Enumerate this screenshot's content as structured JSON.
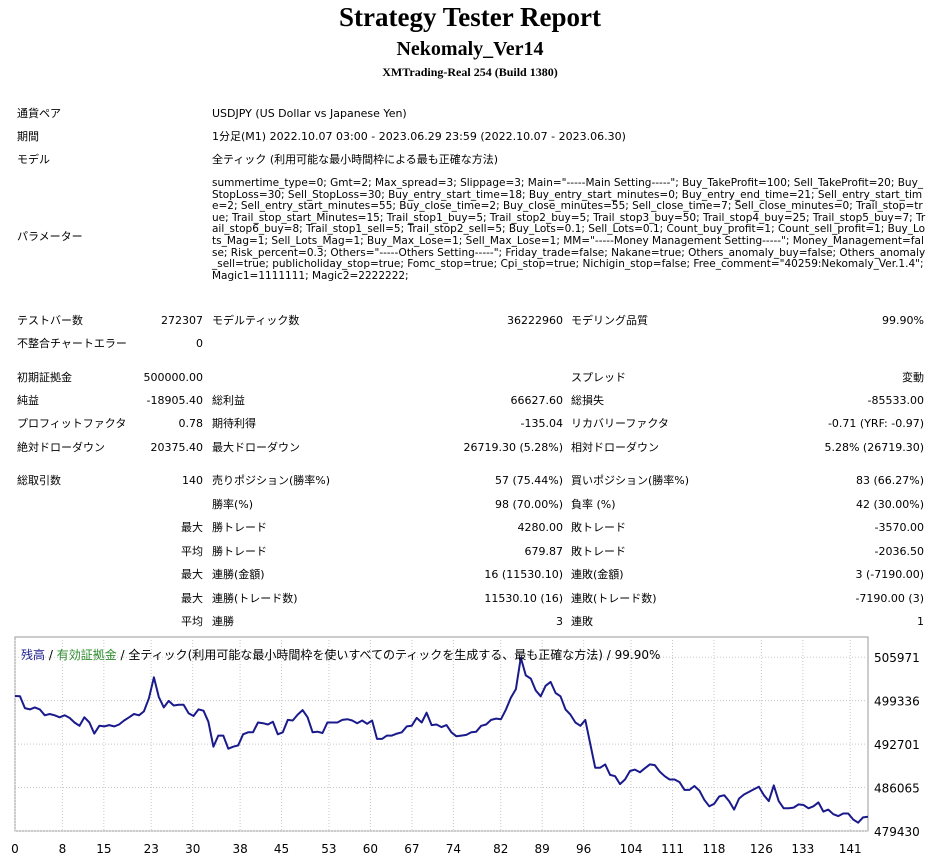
{
  "header": {
    "title": "Strategy Tester Report",
    "ea": "Nekomaly_Ver14",
    "server": "XMTrading-Real 254 (Build 1380)"
  },
  "info": {
    "pair_label": "通貨ペア",
    "pair": "USDJPY (US Dollar vs Japanese Yen)",
    "period_label": "期間",
    "period": "1分足(M1) 2022.10.07 03:00 - 2023.06.29 23:59 (2022.10.07 - 2023.06.30)",
    "model_label": "モデル",
    "model": "全ティック (利用可能な最小時間枠による最も正確な方法)",
    "params_label": "パラメーター",
    "params": "summertime_type=0; Gmt=2; Max_spread=3; Slippage=3; Main=\"-----Main Setting-----\"; Buy_TakeProfit=100; Sell_TakeProfit=20; Buy_StopLoss=30; Sell_StopLoss=30; Buy_entry_start_time=18; Buy_entry_start_minutes=0; Buy_entry_end_time=21; Sell_entry_start_time=2; Sell_entry_start_minutes=55; Buy_close_time=2; Buy_close_minutes=55; Sell_close_time=7; Sell_close_minutes=0; Trail_stop=true; Trail_stop_start_Minutes=15; Trail_stop1_buy=5; Trail_stop2_buy=5; Trail_stop3_buy=50; Trail_stop4_buy=25; Trail_stop5_buy=7; Trail_stop6_buy=8; Trail_stop1_sell=5; Trail_stop2_sell=5; Buy_Lots=0.1; Sell_Lots=0.1; Count_buy_profit=1; Count_sell_profit=1; Buy_Lots_Mag=1; Sell_Lots_Mag=1; Buy_Max_Lose=1; Sell_Max_Lose=1; MM=\"-----Money Management Setting-----\"; Money_Management=false; Risk_percent=0.3; Others=\"-----Others Setting-----\"; Friday_trade=false; Nakane=true; Others_anomaly_buy=false; Others_anomaly_sell=true; publicholiday_stop=true; Fomc_stop=true; Cpi_stop=true; Nichigin_stop=false; Free_comment=\"40259:Nekomaly_Ver.1.4\"; Magic1=1111111; Magic2=2222222;"
  },
  "stats": {
    "bars_label": "テストバー数",
    "bars": "272307",
    "ticks_label": "モデルティック数",
    "ticks": "36222960",
    "quality_label": "モデリング品質",
    "quality": "99.90%",
    "mismatch_label": "不整合チャートエラー",
    "mismatch": "0",
    "deposit_label": "初期証拠金",
    "deposit": "500000.00",
    "spread_label": "スプレッド",
    "spread": "変動",
    "net_label": "純益",
    "net": "-18905.40",
    "gross_profit_label": "総利益",
    "gross_profit": "66627.60",
    "gross_loss_label": "総損失",
    "gross_loss": "-85533.00",
    "pf_label": "プロフィットファクタ",
    "pf": "0.78",
    "expected_label": "期待利得",
    "expected": "-135.04",
    "recovery_label": "リカバリーファクタ",
    "recovery": "-0.71 (YRF: -0.97)",
    "abs_dd_label": "絶対ドローダウン",
    "abs_dd": "20375.40",
    "max_dd_label": "最大ドローダウン",
    "max_dd": "26719.30 (5.28%)",
    "rel_dd_label": "相対ドローダウン",
    "rel_dd": "5.28% (26719.30)",
    "trades_label": "総取引数",
    "trades": "140",
    "short_label": "売りポジション(勝率%)",
    "short": "57 (75.44%)",
    "long_label": "買いポジション(勝率%)",
    "long": "83 (66.27%)",
    "win_label": "勝率(%)",
    "win": "98 (70.00%)",
    "loss_label": "負率 (%)",
    "loss": "42 (30.00%)",
    "max_w": "最大",
    "largest_win_label": "勝トレード",
    "largest_win": "4280.00",
    "largest_loss_label": "敗トレード",
    "largest_loss": "-3570.00",
    "avg_w": "平均",
    "avg_win_label": "勝トレード",
    "avg_win": "679.87",
    "avg_loss_label": "敗トレード",
    "avg_loss": "-2036.50",
    "max_w2": "最大",
    "cons_win_amt_label": "連勝(金額)",
    "cons_win_amt": "16 (11530.10)",
    "cons_loss_amt_label": "連敗(金額)",
    "cons_loss_amt": "3 (-7190.00)",
    "max_w3": "最大",
    "cons_win_cnt_label": "連勝(トレード数)",
    "cons_win_cnt": "11530.10 (16)",
    "cons_loss_cnt_label": "連敗(トレード数)",
    "cons_loss_cnt": "-7190.00 (3)",
    "avg_w2": "平均",
    "avg_cons_win_label": "連勝",
    "avg_cons_win": "3",
    "avg_cons_loss_label": "連敗",
    "avg_cons_loss": "1"
  },
  "legend": {
    "balance": "残高",
    "sep1": " / ",
    "equity": "有効証拠金",
    "rest": " / 全ティック(利用可能な最小時間枠を使いすべてのティックを生成する、最も正確な方法) / 99.90%"
  },
  "colors": {
    "balance": "#1a1a8c",
    "equity": "#2e8b2e",
    "grid": "#c8c8c8"
  },
  "chart_data": {
    "type": "line",
    "title": "",
    "xlabel": "",
    "ylabel": "",
    "x_ticks": [
      "0",
      "8",
      "15",
      "23",
      "30",
      "38",
      "45",
      "53",
      "60",
      "67",
      "74",
      "82",
      "89",
      "96",
      "104",
      "111",
      "118",
      "126",
      "133",
      "141"
    ],
    "y_ticks": [
      "505971",
      "499336",
      "492701",
      "486065",
      "479430"
    ],
    "xlim": [
      0,
      144
    ],
    "ylim": [
      479430,
      508600
    ],
    "grid": true,
    "series": [
      {
        "name": "残高",
        "values": [
          500050,
          500000,
          498200,
          498000,
          498300,
          498000,
          497100,
          497300,
          497100,
          496800,
          497100,
          496700,
          496000,
          495500,
          496800,
          496000,
          494300,
          495500,
          495400,
          495600,
          495400,
          495700,
          496300,
          496800,
          497300,
          497100,
          497700,
          499700,
          502900,
          499900,
          498300,
          499300,
          498600,
          498700,
          498700,
          497400,
          497000,
          498000,
          497800,
          496100,
          492300,
          494000,
          494000,
          492000,
          492300,
          492500,
          494200,
          494500,
          494500,
          496000,
          495900,
          495700,
          496100,
          494200,
          494500,
          496400,
          496300,
          497200,
          497900,
          496800,
          494500,
          494600,
          494400,
          496000,
          496000,
          496000,
          496400,
          496500,
          496300,
          495900,
          496300,
          495800,
          496300,
          493500,
          493500,
          494000,
          494000,
          494300,
          494500,
          495400,
          495500,
          496700,
          496000,
          497500,
          495600,
          495700,
          495300,
          495600,
          494500,
          493900,
          494000,
          494100,
          494500,
          494600,
          495500,
          495700,
          496400,
          496600,
          496500,
          498000,
          499800,
          501100,
          505900,
          503200,
          502700,
          500900,
          500000,
          501600,
          502200,
          500500,
          500000,
          498000,
          497200,
          496000,
          495500,
          496400,
          492700,
          489100,
          489100,
          489600,
          488000,
          487800,
          486600,
          487300,
          488600,
          488800,
          488400,
          489000,
          489600,
          489500,
          488500,
          487800,
          487300,
          487300,
          486900,
          485700,
          485700,
          486300,
          485600,
          484200,
          483200,
          483600,
          484700,
          484900,
          484000,
          482700,
          484400,
          485000,
          485400,
          485800,
          486200,
          484900,
          484000,
          486400,
          484000,
          482900,
          482900,
          483000,
          483500,
          483400,
          482900,
          483200,
          483800,
          482400,
          482700,
          482000,
          481700,
          482100,
          482100,
          481200,
          480700,
          481500,
          481600
        ]
      }
    ]
  }
}
